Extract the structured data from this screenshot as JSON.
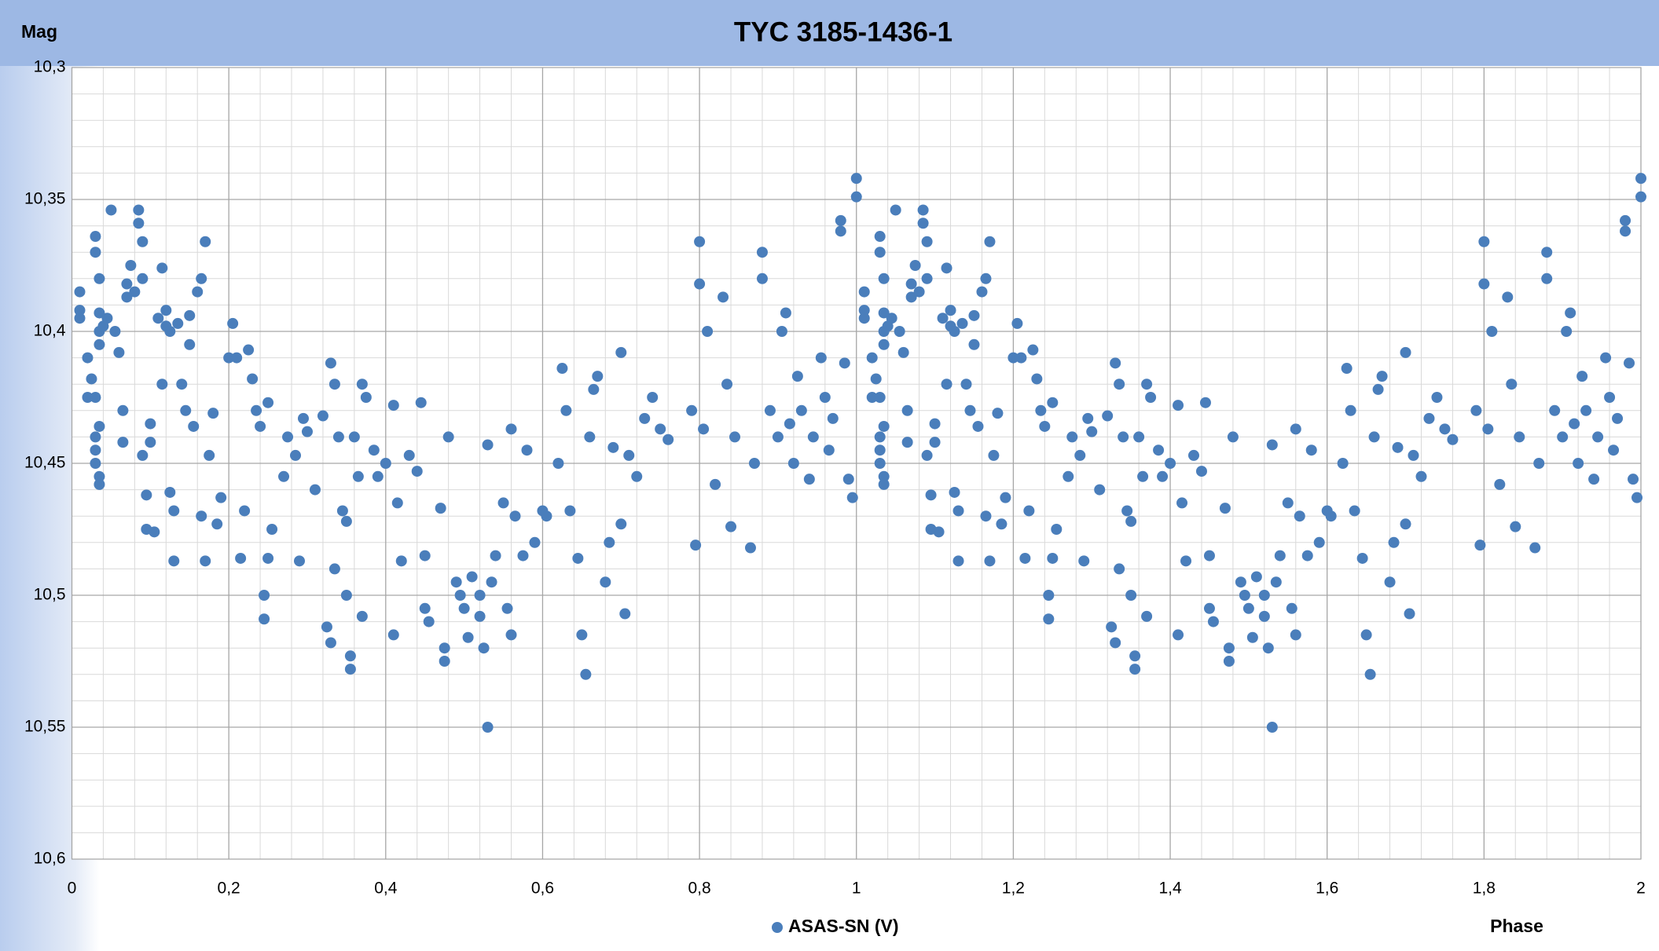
{
  "chart_data": {
    "type": "scatter",
    "title": "TYC 3185-1436-1",
    "x_label": "Phase",
    "y_label": "Mag",
    "xlim": [
      0,
      2
    ],
    "ylim": [
      10.3,
      10.6
    ],
    "y_reversed": true,
    "grid": true,
    "minor_grid_divisions": 5,
    "legend": "bottom",
    "xticks": [
      0,
      {
        "value": 0.2,
        "label": "0,2"
      },
      {
        "value": 0.4,
        "label": "0,4"
      },
      {
        "value": 0.6,
        "label": "0,6"
      },
      {
        "value": 0.8,
        "label": "0,8"
      },
      1,
      {
        "value": 1.2,
        "label": "1,2"
      },
      {
        "value": 1.4,
        "label": "1,4"
      },
      {
        "value": 1.6,
        "label": "1,6"
      },
      {
        "value": 1.8,
        "label": "1,8"
      },
      2
    ],
    "yticks": [
      {
        "value": 10.3,
        "label": "10,3"
      },
      {
        "value": 10.35,
        "label": "10,35"
      },
      {
        "value": 10.4,
        "label": "10,4"
      },
      {
        "value": 10.45,
        "label": "10,45"
      },
      {
        "value": 10.5,
        "label": "10,5"
      },
      {
        "value": 10.55,
        "label": "10,55"
      },
      {
        "value": 10.6,
        "label": "10,6"
      }
    ],
    "series": [
      {
        "name": "ASAS-SN (V)",
        "color": "#4a7ebb",
        "x": [
          0.01,
          0.01,
          0.01,
          0.02,
          0.02,
          0.025,
          0.03,
          0.03,
          0.03,
          0.03,
          0.03,
          0.03,
          0.035,
          0.035,
          0.035,
          0.035,
          0.035,
          0.035,
          0.035,
          0.04,
          0.045,
          0.05,
          0.055,
          0.06,
          0.065,
          0.065,
          0.07,
          0.07,
          0.075,
          0.08,
          0.085,
          0.085,
          0.09,
          0.09,
          0.09,
          0.095,
          0.095,
          0.1,
          0.1,
          0.105,
          0.11,
          0.115,
          0.115,
          0.12,
          0.12,
          0.125,
          0.125,
          0.13,
          0.13,
          0.135,
          0.14,
          0.145,
          0.15,
          0.15,
          0.155,
          0.16,
          0.165,
          0.165,
          0.17,
          0.17,
          0.175,
          0.18,
          0.185,
          0.19,
          0.2,
          0.205,
          0.21,
          0.215,
          0.22,
          0.225,
          0.23,
          0.235,
          0.24,
          0.245,
          0.245,
          0.25,
          0.25,
          0.255,
          0.27,
          0.275,
          0.285,
          0.29,
          0.295,
          0.3,
          0.31,
          0.32,
          0.325,
          0.33,
          0.33,
          0.335,
          0.335,
          0.34,
          0.345,
          0.35,
          0.35,
          0.355,
          0.355,
          0.36,
          0.365,
          0.37,
          0.37,
          0.375,
          0.385,
          0.39,
          0.4,
          0.41,
          0.41,
          0.415,
          0.42,
          0.43,
          0.44,
          0.445,
          0.45,
          0.45,
          0.455,
          0.47,
          0.475,
          0.475,
          0.48,
          0.49,
          0.495,
          0.5,
          0.505,
          0.51,
          0.52,
          0.52,
          0.525,
          0.53,
          0.53,
          0.535,
          0.54,
          0.55,
          0.555,
          0.56,
          0.56,
          0.565,
          0.575,
          0.58,
          0.59,
          0.6,
          0.605,
          0.62,
          0.625,
          0.63,
          0.635,
          0.645,
          0.65,
          0.655,
          0.66,
          0.665,
          0.67,
          0.68,
          0.685,
          0.69,
          0.7,
          0.7,
          0.705,
          0.71,
          0.72,
          0.73,
          0.74,
          0.75,
          0.76,
          0.79,
          0.795,
          0.8,
          0.8,
          0.805,
          0.81,
          0.82,
          0.83,
          0.835,
          0.84,
          0.845,
          0.865,
          0.87,
          0.88,
          0.88,
          0.89,
          0.9,
          0.905,
          0.91,
          0.915,
          0.92,
          0.925,
          0.93,
          0.94,
          0.945,
          0.955,
          0.96,
          0.965,
          0.97,
          0.98,
          0.98,
          0.985,
          0.99,
          0.995,
          1,
          1,
          1.01,
          1.01,
          1.01,
          1.02,
          1.02,
          1.025,
          1.03,
          1.03,
          1.03,
          1.03,
          1.03,
          1.03,
          1.035,
          1.035,
          1.035,
          1.035,
          1.035,
          1.035,
          1.035,
          1.04,
          1.045,
          1.05,
          1.055,
          1.06,
          1.065,
          1.065,
          1.07,
          1.07,
          1.075,
          1.08,
          1.085,
          1.085,
          1.09,
          1.09,
          1.09,
          1.095,
          1.095,
          1.1,
          1.1,
          1.105,
          1.11,
          1.115,
          1.115,
          1.12,
          1.12,
          1.125,
          1.125,
          1.13,
          1.13,
          1.135,
          1.14,
          1.145,
          1.15,
          1.15,
          1.155,
          1.16,
          1.165,
          1.165,
          1.17,
          1.17,
          1.175,
          1.18,
          1.185,
          1.19,
          1.2,
          1.205,
          1.21,
          1.215,
          1.22,
          1.225,
          1.23,
          1.235,
          1.24,
          1.245,
          1.245,
          1.25,
          1.25,
          1.255,
          1.27,
          1.275,
          1.285,
          1.29,
          1.295,
          1.3,
          1.31,
          1.32,
          1.325,
          1.33,
          1.33,
          1.335,
          1.335,
          1.34,
          1.345,
          1.35,
          1.35,
          1.355,
          1.355,
          1.36,
          1.365,
          1.37,
          1.37,
          1.375,
          1.385,
          1.39,
          1.4,
          1.41,
          1.41,
          1.415,
          1.42,
          1.43,
          1.44,
          1.445,
          1.45,
          1.45,
          1.455,
          1.47,
          1.475,
          1.475,
          1.48,
          1.49,
          1.495,
          1.5,
          1.505,
          1.51,
          1.52,
          1.52,
          1.525,
          1.53,
          1.53,
          1.535,
          1.54,
          1.55,
          1.555,
          1.56,
          1.56,
          1.565,
          1.575,
          1.58,
          1.59,
          1.6,
          1.605,
          1.62,
          1.625,
          1.63,
          1.635,
          1.645,
          1.65,
          1.655,
          1.66,
          1.665,
          1.67,
          1.68,
          1.685,
          1.69,
          1.7,
          1.7,
          1.705,
          1.71,
          1.72,
          1.73,
          1.74,
          1.75,
          1.76,
          1.79,
          1.795,
          1.8,
          1.8,
          1.805,
          1.81,
          1.82,
          1.83,
          1.835,
          1.84,
          1.845,
          1.865,
          1.87,
          1.88,
          1.88,
          1.89,
          1.9,
          1.905,
          1.91,
          1.915,
          1.92,
          1.925,
          1.93,
          1.94,
          1.945,
          1.955,
          1.96,
          1.965,
          1.97,
          1.98,
          1.98,
          1.985,
          1.99,
          1.995,
          2,
          2
        ],
        "values": [
          10.385,
          10.392,
          10.395,
          10.41,
          10.425,
          10.418,
          10.425,
          10.44,
          10.445,
          10.45,
          10.364,
          10.37,
          10.38,
          10.393,
          10.4,
          10.405,
          10.455,
          10.458,
          10.436,
          10.398,
          10.395,
          10.354,
          10.4,
          10.408,
          10.43,
          10.442,
          10.382,
          10.387,
          10.375,
          10.385,
          10.354,
          10.359,
          10.366,
          10.38,
          10.447,
          10.475,
          10.462,
          10.442,
          10.435,
          10.476,
          10.395,
          10.376,
          10.42,
          10.392,
          10.398,
          10.4,
          10.461,
          10.487,
          10.468,
          10.397,
          10.42,
          10.43,
          10.394,
          10.405,
          10.436,
          10.385,
          10.38,
          10.47,
          10.366,
          10.487,
          10.447,
          10.431,
          10.473,
          10.463,
          10.41,
          10.397,
          10.41,
          10.486,
          10.468,
          10.407,
          10.418,
          10.43,
          10.436,
          10.5,
          10.509,
          10.486,
          10.427,
          10.475,
          10.455,
          10.44,
          10.447,
          10.487,
          10.433,
          10.438,
          10.46,
          10.432,
          10.512,
          10.518,
          10.412,
          10.42,
          10.49,
          10.44,
          10.468,
          10.472,
          10.5,
          10.523,
          10.528,
          10.44,
          10.455,
          10.508,
          10.42,
          10.425,
          10.445,
          10.455,
          10.45,
          10.515,
          10.428,
          10.465,
          10.487,
          10.447,
          10.453,
          10.427,
          10.485,
          10.505,
          10.51,
          10.467,
          10.52,
          10.525,
          10.44,
          10.495,
          10.5,
          10.505,
          10.516,
          10.493,
          10.508,
          10.5,
          10.52,
          10.443,
          10.55,
          10.495,
          10.485,
          10.465,
          10.505,
          10.515,
          10.437,
          10.47,
          10.485,
          10.445,
          10.48,
          10.468,
          10.47,
          10.45,
          10.414,
          10.43,
          10.468,
          10.486,
          10.515,
          10.53,
          10.44,
          10.422,
          10.417,
          10.495,
          10.48,
          10.444,
          10.408,
          10.473,
          10.507,
          10.447,
          10.455,
          10.433,
          10.425,
          10.437,
          10.441,
          10.43,
          10.481,
          10.366,
          10.382,
          10.437,
          10.4,
          10.458,
          10.387,
          10.42,
          10.474,
          10.44,
          10.482,
          10.45,
          10.38,
          10.37,
          10.43,
          10.44,
          10.4,
          10.393,
          10.435,
          10.45,
          10.417,
          10.43,
          10.456,
          10.44,
          10.41,
          10.425,
          10.445,
          10.433,
          10.358,
          10.362,
          10.412,
          10.456,
          10.463,
          10.342,
          10.349,
          10.385,
          10.392,
          10.395,
          10.41,
          10.425,
          10.418,
          10.425,
          10.44,
          10.445,
          10.45,
          10.364,
          10.37,
          10.38,
          10.393,
          10.4,
          10.405,
          10.455,
          10.458,
          10.436,
          10.398,
          10.395,
          10.354,
          10.4,
          10.408,
          10.43,
          10.442,
          10.382,
          10.387,
          10.375,
          10.385,
          10.354,
          10.359,
          10.366,
          10.38,
          10.447,
          10.475,
          10.462,
          10.442,
          10.435,
          10.476,
          10.395,
          10.376,
          10.42,
          10.392,
          10.398,
          10.4,
          10.461,
          10.487,
          10.468,
          10.397,
          10.42,
          10.43,
          10.394,
          10.405,
          10.436,
          10.385,
          10.38,
          10.47,
          10.366,
          10.487,
          10.447,
          10.431,
          10.473,
          10.463,
          10.41,
          10.397,
          10.41,
          10.486,
          10.468,
          10.407,
          10.418,
          10.43,
          10.436,
          10.5,
          10.509,
          10.486,
          10.427,
          10.475,
          10.455,
          10.44,
          10.447,
          10.487,
          10.433,
          10.438,
          10.46,
          10.432,
          10.512,
          10.518,
          10.412,
          10.42,
          10.49,
          10.44,
          10.468,
          10.472,
          10.5,
          10.523,
          10.528,
          10.44,
          10.455,
          10.508,
          10.42,
          10.425,
          10.445,
          10.455,
          10.45,
          10.515,
          10.428,
          10.465,
          10.487,
          10.447,
          10.453,
          10.427,
          10.485,
          10.505,
          10.51,
          10.467,
          10.52,
          10.525,
          10.44,
          10.495,
          10.5,
          10.505,
          10.516,
          10.493,
          10.508,
          10.5,
          10.52,
          10.443,
          10.55,
          10.495,
          10.485,
          10.465,
          10.505,
          10.515,
          10.437,
          10.47,
          10.485,
          10.445,
          10.48,
          10.468,
          10.47,
          10.45,
          10.414,
          10.43,
          10.468,
          10.486,
          10.515,
          10.53,
          10.44,
          10.422,
          10.417,
          10.495,
          10.48,
          10.444,
          10.408,
          10.473,
          10.507,
          10.447,
          10.455,
          10.433,
          10.425,
          10.437,
          10.441,
          10.43,
          10.481,
          10.366,
          10.382,
          10.437,
          10.4,
          10.458,
          10.387,
          10.42,
          10.474,
          10.44,
          10.482,
          10.45,
          10.38,
          10.37,
          10.43,
          10.44,
          10.4,
          10.393,
          10.435,
          10.45,
          10.417,
          10.43,
          10.456,
          10.44,
          10.41,
          10.425,
          10.445,
          10.433,
          10.358,
          10.362,
          10.412,
          10.456,
          10.463,
          10.342,
          10.349
        ]
      }
    ]
  }
}
